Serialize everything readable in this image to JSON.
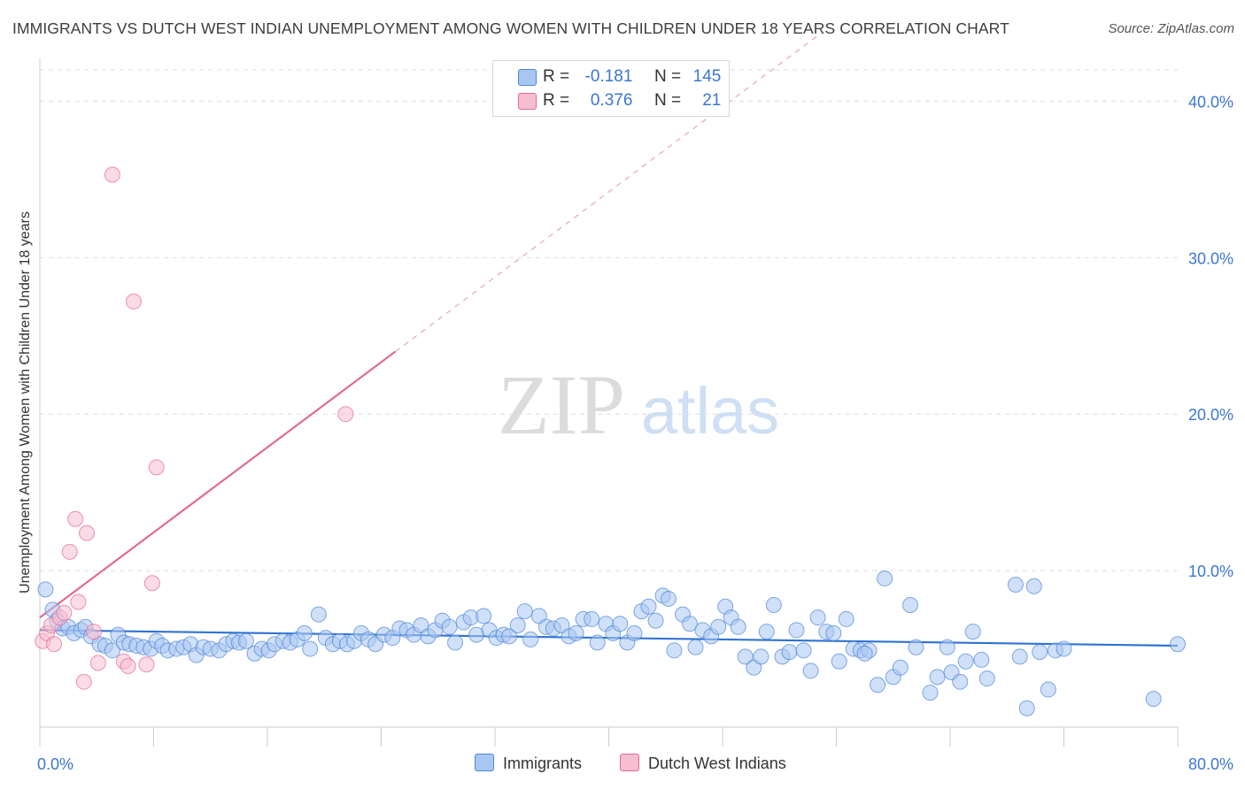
{
  "title": "IMMIGRANTS VS DUTCH WEST INDIAN UNEMPLOYMENT AMONG WOMEN WITH CHILDREN UNDER 18 YEARS CORRELATION CHART",
  "source": "Source: ZipAtlas.com",
  "watermark": {
    "zip": "ZIP",
    "atlas": "atlas"
  },
  "legend": {
    "r_label": "R =",
    "n_label": "N =",
    "rows": [
      {
        "name": "Immigrants",
        "r": "-0.181",
        "n": "145",
        "color": "#a9c6f2"
      },
      {
        "name": "Dutch West Indians",
        "r": "0.376",
        "n": "21",
        "color": "#f7bdd0"
      }
    ]
  },
  "chart_data": {
    "type": "scatter",
    "title": "IMMIGRANTS VS DUTCH WEST INDIAN UNEMPLOYMENT AMONG WOMEN WITH CHILDREN UNDER 18 YEARS CORRELATION CHART",
    "xlabel": "",
    "ylabel": "Unemployment Among Women with Children Under 18 years",
    "xlim": [
      0,
      80
    ],
    "ylim": [
      0,
      42
    ],
    "x_tick_labels": [
      "0.0%",
      "80.0%"
    ],
    "y_ticks": [
      10,
      20,
      30,
      40
    ],
    "y_tick_labels": [
      "10.0%",
      "20.0%",
      "30.0%",
      "40.0%"
    ],
    "grid": true,
    "series": [
      {
        "name": "Immigrants",
        "color": "#4a86d8",
        "fill": "#a9c6f2",
        "trend": {
          "x0": 0,
          "y0": 6.2,
          "x1": 80,
          "y1": 5.2
        },
        "points": [
          [
            0.4,
            8.8
          ],
          [
            0.9,
            7.5
          ],
          [
            1.2,
            6.8
          ],
          [
            1.6,
            6.3
          ],
          [
            2.0,
            6.4
          ],
          [
            2.4,
            6.0
          ],
          [
            2.9,
            6.2
          ],
          [
            3.2,
            6.4
          ],
          [
            3.6,
            5.8
          ],
          [
            4.2,
            5.3
          ],
          [
            4.6,
            5.2
          ],
          [
            5.1,
            4.9
          ],
          [
            5.5,
            5.9
          ],
          [
            5.9,
            5.4
          ],
          [
            6.3,
            5.3
          ],
          [
            6.8,
            5.2
          ],
          [
            7.3,
            5.1
          ],
          [
            7.8,
            5.0
          ],
          [
            8.2,
            5.5
          ],
          [
            8.6,
            5.2
          ],
          [
            9.0,
            4.9
          ],
          [
            9.6,
            5.0
          ],
          [
            10.1,
            5.1
          ],
          [
            10.6,
            5.3
          ],
          [
            11.0,
            4.6
          ],
          [
            11.5,
            5.1
          ],
          [
            12.0,
            5.0
          ],
          [
            12.6,
            4.9
          ],
          [
            13.1,
            5.3
          ],
          [
            13.6,
            5.5
          ],
          [
            14.0,
            5.4
          ],
          [
            14.5,
            5.5
          ],
          [
            15.1,
            4.7
          ],
          [
            15.6,
            5.0
          ],
          [
            16.1,
            4.9
          ],
          [
            16.5,
            5.3
          ],
          [
            17.1,
            5.5
          ],
          [
            17.6,
            5.4
          ],
          [
            18.1,
            5.6
          ],
          [
            18.6,
            6.0
          ],
          [
            19.0,
            5.0
          ],
          [
            19.6,
            7.2
          ],
          [
            20.1,
            5.7
          ],
          [
            20.6,
            5.3
          ],
          [
            21.1,
            5.5
          ],
          [
            21.6,
            5.3
          ],
          [
            22.1,
            5.5
          ],
          [
            22.6,
            6.0
          ],
          [
            23.1,
            5.6
          ],
          [
            23.6,
            5.3
          ],
          [
            24.2,
            5.9
          ],
          [
            24.8,
            5.7
          ],
          [
            25.3,
            6.3
          ],
          [
            25.8,
            6.2
          ],
          [
            26.3,
            5.9
          ],
          [
            26.8,
            6.5
          ],
          [
            27.3,
            5.8
          ],
          [
            27.8,
            6.2
          ],
          [
            28.3,
            6.8
          ],
          [
            28.8,
            6.4
          ],
          [
            29.2,
            5.4
          ],
          [
            29.8,
            6.7
          ],
          [
            30.3,
            7.0
          ],
          [
            30.7,
            5.9
          ],
          [
            31.2,
            7.1
          ],
          [
            31.6,
            6.2
          ],
          [
            32.1,
            5.7
          ],
          [
            32.6,
            5.9
          ],
          [
            33.0,
            5.8
          ],
          [
            33.6,
            6.5
          ],
          [
            34.1,
            7.4
          ],
          [
            34.5,
            5.6
          ],
          [
            35.1,
            7.1
          ],
          [
            35.6,
            6.4
          ],
          [
            36.1,
            6.3
          ],
          [
            36.7,
            6.5
          ],
          [
            37.2,
            5.8
          ],
          [
            37.7,
            6.0
          ],
          [
            38.2,
            6.9
          ],
          [
            38.8,
            6.9
          ],
          [
            39.2,
            5.4
          ],
          [
            39.8,
            6.6
          ],
          [
            40.3,
            6.0
          ],
          [
            40.8,
            6.6
          ],
          [
            41.3,
            5.4
          ],
          [
            41.8,
            6.0
          ],
          [
            42.3,
            7.4
          ],
          [
            42.8,
            7.7
          ],
          [
            43.3,
            6.8
          ],
          [
            43.8,
            8.4
          ],
          [
            44.2,
            8.2
          ],
          [
            44.6,
            4.9
          ],
          [
            45.2,
            7.2
          ],
          [
            45.7,
            6.6
          ],
          [
            46.1,
            5.1
          ],
          [
            46.6,
            6.2
          ],
          [
            47.2,
            5.8
          ],
          [
            47.7,
            6.4
          ],
          [
            48.2,
            7.7
          ],
          [
            48.6,
            7.0
          ],
          [
            49.1,
            6.4
          ],
          [
            49.6,
            4.5
          ],
          [
            50.2,
            3.8
          ],
          [
            50.7,
            4.5
          ],
          [
            51.1,
            6.1
          ],
          [
            51.6,
            7.8
          ],
          [
            52.2,
            4.5
          ],
          [
            52.7,
            4.8
          ],
          [
            53.2,
            6.2
          ],
          [
            53.7,
            4.9
          ],
          [
            54.2,
            3.6
          ],
          [
            54.7,
            7.0
          ],
          [
            55.3,
            6.1
          ],
          [
            55.8,
            6.0
          ],
          [
            56.2,
            4.2
          ],
          [
            56.7,
            6.9
          ],
          [
            57.2,
            5.0
          ],
          [
            57.7,
            4.9
          ],
          [
            58.3,
            4.9
          ],
          [
            58.9,
            2.7
          ],
          [
            59.4,
            9.5
          ],
          [
            60.0,
            3.2
          ],
          [
            60.5,
            3.8
          ],
          [
            61.2,
            7.8
          ],
          [
            61.6,
            5.1
          ],
          [
            62.6,
            2.2
          ],
          [
            63.1,
            3.2
          ],
          [
            64.1,
            3.5
          ],
          [
            64.7,
            2.9
          ],
          [
            65.1,
            4.2
          ],
          [
            65.6,
            6.1
          ],
          [
            66.2,
            4.3
          ],
          [
            66.6,
            3.1
          ],
          [
            68.6,
            9.1
          ],
          [
            68.9,
            4.5
          ],
          [
            69.4,
            1.2
          ],
          [
            69.9,
            9.0
          ],
          [
            70.3,
            4.8
          ],
          [
            70.9,
            2.4
          ],
          [
            71.4,
            4.9
          ],
          [
            72.0,
            5.0
          ],
          [
            78.3,
            1.8
          ],
          [
            80.0,
            5.3
          ],
          [
            63.8,
            5.1
          ],
          [
            58.0,
            4.7
          ]
        ]
      },
      {
        "name": "Dutch West Indians",
        "color": "#e26a95",
        "fill": "#f7bdd0",
        "trend": {
          "x0": 0,
          "y0": 7.0,
          "x1": 25,
          "y1": 24.0,
          "dash_to_x": 55
        },
        "points": [
          [
            0.2,
            5.5
          ],
          [
            0.5,
            6.0
          ],
          [
            0.8,
            6.5
          ],
          [
            1.0,
            5.3
          ],
          [
            1.4,
            7.0
          ],
          [
            1.7,
            7.3
          ],
          [
            2.1,
            11.2
          ],
          [
            2.5,
            13.3
          ],
          [
            2.7,
            8.0
          ],
          [
            3.1,
            2.9
          ],
          [
            3.3,
            12.4
          ],
          [
            3.8,
            6.1
          ],
          [
            4.1,
            4.1
          ],
          [
            5.9,
            4.2
          ],
          [
            6.2,
            3.9
          ],
          [
            6.6,
            27.2
          ],
          [
            7.5,
            4.0
          ],
          [
            7.9,
            9.2
          ],
          [
            8.2,
            16.6
          ],
          [
            21.5,
            20.0
          ],
          [
            5.1,
            35.3
          ]
        ]
      }
    ]
  }
}
